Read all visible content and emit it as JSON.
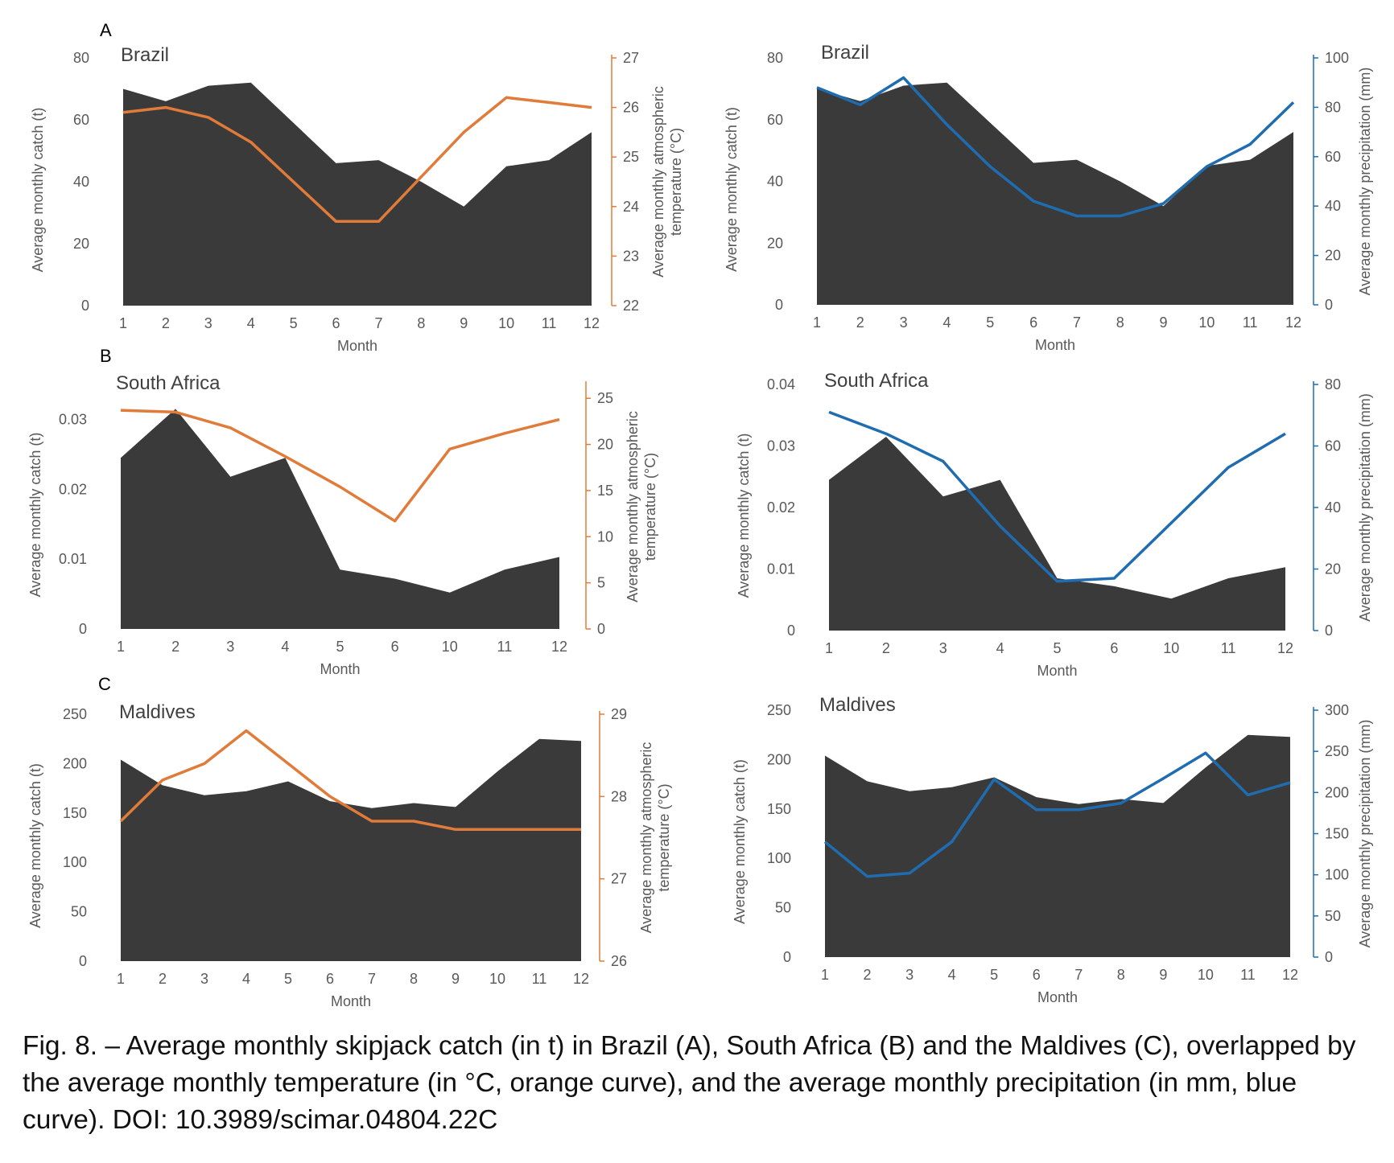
{
  "colors": {
    "catch_fill": "#3a3a3a",
    "temperature": "#e07b39",
    "precipitation": "#1f6cb0",
    "tick_text": "#595959"
  },
  "panel_labels": [
    "A",
    "B",
    "C"
  ],
  "caption": "Fig. 8. – Average monthly skipjack catch (in t) in Brazil (A), South Africa (B) and the Maldives (C), overlapped by the average monthly temperature (in °C, orange curve), and the average monthly precipitation (in mm, blue curve). DOI: 10.3989/scimar.04804.22C",
  "chart_data": [
    {
      "type": "area",
      "panel": "A",
      "country": "Brazil",
      "variable": "temperature",
      "xlabel": "Month",
      "ylabel": "Average monthly catch (t)",
      "y2label": [
        "Average monthly atmospheric",
        "temperature (°C)"
      ],
      "categories": [
        "1",
        "2",
        "3",
        "4",
        "5",
        "6",
        "7",
        "8",
        "9",
        "10",
        "11",
        "12"
      ],
      "ylim": [
        0,
        80
      ],
      "yticks": [
        "0",
        "20",
        "40",
        "60",
        "80"
      ],
      "y2lim": [
        22,
        27
      ],
      "y2ticks": [
        "22",
        "23",
        "24",
        "25",
        "26",
        "27"
      ],
      "catch": [
        70,
        66,
        71,
        72,
        59,
        46,
        47,
        40,
        32,
        45,
        47,
        56
      ],
      "climate": [
        25.9,
        26.0,
        25.8,
        25.3,
        24.5,
        23.7,
        23.7,
        24.6,
        25.5,
        26.2,
        26.1,
        26.0
      ],
      "legend": "none",
      "grid": false
    },
    {
      "type": "area",
      "panel": "A",
      "country": "Brazil",
      "variable": "precipitation",
      "xlabel": "Month",
      "ylabel": "Average monthly catch (t)",
      "y2label": [
        "Average monthly precipitation (mm)"
      ],
      "categories": [
        "1",
        "2",
        "3",
        "4",
        "5",
        "6",
        "7",
        "8",
        "9",
        "10",
        "11",
        "12"
      ],
      "ylim": [
        0,
        80
      ],
      "yticks": [
        "0",
        "20",
        "40",
        "60",
        "80"
      ],
      "y2lim": [
        0,
        100
      ],
      "y2ticks": [
        "0",
        "20",
        "40",
        "60",
        "80",
        "100"
      ],
      "catch": [
        70,
        66,
        71,
        72,
        59,
        46,
        47,
        40,
        32,
        45,
        47,
        56
      ],
      "climate": [
        88,
        81,
        92,
        73,
        56,
        42,
        36,
        36,
        41,
        56,
        65,
        82
      ],
      "legend": "none",
      "grid": false
    },
    {
      "type": "area",
      "panel": "B",
      "country": "South Africa",
      "variable": "temperature",
      "xlabel": "Month",
      "ylabel": "Average monthly catch (t)",
      "y2label": [
        "Average monthly atmospheric",
        "temperature (°C)"
      ],
      "categories": [
        "1",
        "2",
        "3",
        "4",
        "5",
        "6",
        "10",
        "11",
        "12"
      ],
      "ylim": [
        0,
        0.035
      ],
      "yticks": [
        "0",
        "0.01",
        "0.02",
        "0.03"
      ],
      "y2lim": [
        0,
        26.5
      ],
      "y2ticks": [
        "0",
        "5",
        "10",
        "15",
        "20",
        "25"
      ],
      "catch": [
        0.0245,
        0.0315,
        0.0218,
        0.0245,
        0.0085,
        0.0072,
        0.0052,
        0.0085,
        0.0103
      ],
      "climate": [
        23.7,
        23.5,
        21.8,
        18.7,
        15.4,
        11.7,
        19.5,
        21.2,
        22.7
      ],
      "legend": "none",
      "grid": false
    },
    {
      "type": "area",
      "panel": "B",
      "country": "South Africa",
      "variable": "precipitation",
      "xlabel": "Month",
      "ylabel": "Average monthly catch (t)",
      "y2label": [
        "Average monthly precipitation (mm)"
      ],
      "categories": [
        "1",
        "2",
        "3",
        "4",
        "5",
        "6",
        "10",
        "11",
        "12"
      ],
      "ylim": [
        0,
        0.04
      ],
      "yticks": [
        "0",
        "0.01",
        "0.02",
        "0.03",
        "0.04"
      ],
      "y2lim": [
        0,
        80
      ],
      "y2ticks": [
        "0",
        "20",
        "40",
        "60",
        "80"
      ],
      "catch": [
        0.0245,
        0.0315,
        0.0218,
        0.0245,
        0.0085,
        0.0072,
        0.0052,
        0.0085,
        0.0103
      ],
      "climate": [
        71,
        64,
        55,
        34,
        16,
        17,
        35,
        53,
        64
      ],
      "legend": "none",
      "grid": false
    },
    {
      "type": "area",
      "panel": "C",
      "country": "Maldives",
      "variable": "temperature",
      "xlabel": "Month",
      "ylabel": "Average monthly catch (t)",
      "y2label": [
        "Average monthly atmospheric",
        "temperature (°C)"
      ],
      "categories": [
        "1",
        "2",
        "3",
        "4",
        "5",
        "6",
        "7",
        "8",
        "9",
        "10",
        "11",
        "12"
      ],
      "ylim": [
        0,
        250
      ],
      "yticks": [
        "0",
        "50",
        "100",
        "150",
        "200",
        "250"
      ],
      "y2lim": [
        26,
        29
      ],
      "y2ticks": [
        "26",
        "27",
        "28",
        "29"
      ],
      "catch": [
        204,
        178,
        168,
        172,
        182,
        162,
        155,
        160,
        156,
        192,
        225,
        223
      ],
      "climate": [
        27.7,
        28.2,
        28.4,
        28.8,
        28.4,
        28.0,
        27.7,
        27.7,
        27.6,
        27.6,
        27.6,
        27.6
      ],
      "legend": "none",
      "grid": false
    },
    {
      "type": "area",
      "panel": "C",
      "country": "Maldives",
      "variable": "precipitation",
      "xlabel": "Month",
      "ylabel": "Average monthly catch (t)",
      "y2label": [
        "Average monthly precipitation (mm)"
      ],
      "categories": [
        "1",
        "2",
        "3",
        "4",
        "5",
        "6",
        "7",
        "8",
        "9",
        "10",
        "11",
        "12"
      ],
      "ylim": [
        0,
        250
      ],
      "yticks": [
        "0",
        "50",
        "100",
        "150",
        "200",
        "250"
      ],
      "y2lim": [
        0,
        300
      ],
      "y2ticks": [
        "0",
        "50",
        "100",
        "150",
        "200",
        "250",
        "300"
      ],
      "catch": [
        204,
        178,
        168,
        172,
        182,
        162,
        155,
        160,
        156,
        192,
        225,
        223
      ],
      "climate": [
        140,
        98,
        102,
        140,
        216,
        179,
        179,
        187,
        217,
        248,
        197,
        212
      ],
      "legend": "none",
      "grid": false
    }
  ]
}
